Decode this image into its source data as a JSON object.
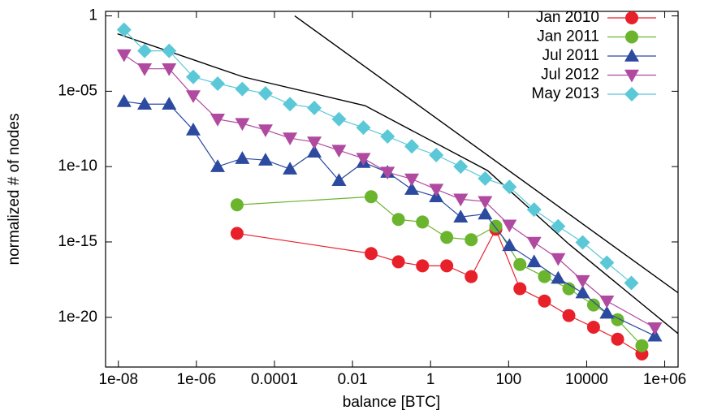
{
  "chart_data": {
    "type": "line",
    "log_x": true,
    "log_y": true,
    "x_label": "balance [BTC]",
    "y_label": "normalized # of nodes",
    "xlim": [
      4.7e-09,
      2200000.0
    ],
    "ylim": [
      5e-24,
      2
    ],
    "xticks": [
      {
        "value": 1e-08,
        "label": "1e-08"
      },
      {
        "value": 1e-06,
        "label": "1e-06"
      },
      0.0001,
      0.01,
      1,
      100,
      10000,
      {
        "value": 1000000.0,
        "label": "1e+06"
      }
    ],
    "yticks": [
      1,
      {
        "value": 1e-05,
        "label": "1e-05"
      },
      {
        "value": 1e-10,
        "label": "1e-10"
      },
      {
        "value": 1e-15,
        "label": "1e-15"
      },
      {
        "value": 1e-20,
        "label": "1e-20"
      }
    ],
    "legend": "top-right",
    "series": [
      {
        "name": "Jan 2010",
        "color": "#e8202a",
        "marker": "circle",
        "x": [
          1.1e-05,
          0.03,
          0.15,
          0.62,
          2.6,
          11,
          47,
          195,
          830,
          3500,
          15000,
          62000,
          260000
        ],
        "values": [
          3.7e-15,
          1.7e-16,
          4.8e-17,
          2.6e-17,
          2.6e-17,
          5e-18,
          6.9e-15,
          7.9e-19,
          1.2e-19,
          1.3e-20,
          2.2e-21,
          3.5e-22,
          3.7e-23
        ]
      },
      {
        "name": "Jan 2011",
        "color": "#6ab42e",
        "marker": "circle",
        "x": [
          1.1e-05,
          0.03,
          0.15,
          0.62,
          2.6,
          11,
          47,
          195,
          830,
          3500,
          15000,
          62000,
          260000
        ],
        "values": [
          2.9e-13,
          1e-12,
          3.1e-14,
          2.1e-14,
          2e-15,
          1.4e-15,
          1.1e-14,
          3.2e-17,
          5e-18,
          7.8e-19,
          6.5e-20,
          6.9e-21,
          1.3e-22
        ]
      },
      {
        "name": "Jul 2011",
        "color": "#2b4aa0",
        "marker": "triangle-up",
        "x": [
          1.4e-08,
          4.7e-08,
          2e-07,
          8.3e-07,
          3.5e-06,
          1.5e-05,
          5.9e-05,
          0.00025,
          0.00105,
          0.0045,
          0.019,
          0.079,
          0.33,
          1.4,
          5.9,
          25,
          105,
          450,
          1860,
          7900,
          33000,
          560000
        ],
        "values": [
          2.1e-06,
          1.4e-06,
          1.4e-06,
          2.7e-08,
          1e-10,
          3.5e-10,
          2.7e-10,
          6.9e-11,
          9.3e-10,
          1.2e-11,
          1.9e-10,
          4.2e-11,
          3.1e-12,
          1e-12,
          4.5e-14,
          7.2e-14,
          5.8e-16,
          4.8e-17,
          3.9e-18,
          4.2e-19,
          1.9e-20,
          5.8e-22
        ]
      },
      {
        "name": "Jul 2012",
        "color": "#b04aa0",
        "marker": "triangle-down",
        "x": [
          1.4e-08,
          4.7e-08,
          2e-07,
          8.3e-07,
          3.5e-06,
          1.5e-05,
          5.9e-05,
          0.00025,
          0.00105,
          0.0045,
          0.019,
          0.079,
          0.33,
          1.4,
          5.9,
          25,
          105,
          450,
          1860,
          7900,
          33000,
          560000
        ],
        "values": [
          0.0026,
          0.00031,
          0.00031,
          5e-06,
          1.4e-07,
          7.2e-08,
          2.7e-08,
          7.8e-09,
          4.2e-09,
          1.2e-09,
          3.5e-10,
          4.2e-11,
          1.5e-11,
          3.1e-12,
          6.9e-13,
          4.8e-13,
          1.3e-14,
          9.3e-16,
          7.8e-17,
          2.7e-18,
          1.2e-19,
          2e-21
        ]
      },
      {
        "name": "May 2013",
        "color": "#5bc8d8",
        "marker": "diamond",
        "x": [
          1.4e-08,
          4.7e-08,
          2e-07,
          8.3e-07,
          3.5e-06,
          1.5e-05,
          5.9e-05,
          0.00025,
          0.00105,
          0.0045,
          0.019,
          0.079,
          0.33,
          1.4,
          5.9,
          25,
          105,
          450,
          1860,
          7900,
          33000,
          140000
        ],
        "values": [
          0.12,
          0.0048,
          0.0048,
          8.9e-05,
          3.2e-05,
          1.4e-05,
          7.2e-06,
          1.4e-06,
          7.8e-07,
          1.4e-07,
          3.9e-08,
          1e-08,
          2.2e-09,
          5.8e-10,
          1e-10,
          1.6e-11,
          4.5e-12,
          1.4e-13,
          1.1e-14,
          9.3e-16,
          4.2e-17,
          1.9e-18
        ]
      }
    ],
    "fit_lines": [
      {
        "color": "#000000",
        "x": [
          0.00033,
          2200000.0
        ],
        "values": [
          1,
          4.2e-19
        ]
      },
      {
        "color": "#000000",
        "x": [
          9.5e-09,
          1.6e-05,
          0.021,
          29,
          3500,
          2200000.0
        ],
        "values": [
          0.065,
          8.9e-05,
          1.1e-06,
          5.4e-11,
          7.2e-16,
          8.3e-22
        ]
      }
    ]
  }
}
